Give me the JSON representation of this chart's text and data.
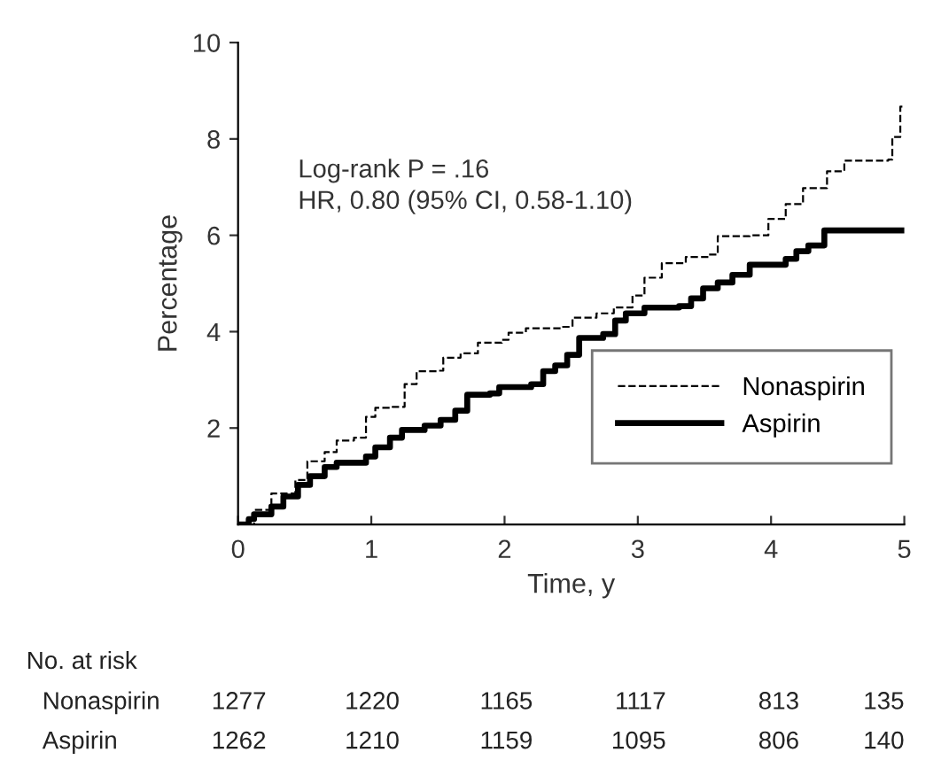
{
  "chart_data": {
    "type": "step",
    "xlabel": "Time, y",
    "ylabel": "Percentage",
    "xlim": [
      0,
      5
    ],
    "ylim": [
      0,
      10
    ],
    "xticks": [
      0,
      1,
      2,
      3,
      4,
      5
    ],
    "yticks": [
      2,
      4,
      6,
      8,
      10
    ],
    "grid": false,
    "legend": "bottom right",
    "marker": "none",
    "series": [
      {
        "name": "Nonaspirin",
        "color": "#000000",
        "line_style": "dashed",
        "x": [
          0,
          0.12,
          0.25,
          0.43,
          0.52,
          0.65,
          0.74,
          0.87,
          0.96,
          1.03,
          1.16,
          1.25,
          1.34,
          1.5,
          1.54,
          1.67,
          1.8,
          1.98,
          2.03,
          2.16,
          2.43,
          2.51,
          2.69,
          2.82,
          2.96,
          3.05,
          3.18,
          3.36,
          3.53,
          3.6,
          3.84,
          3.98,
          4.11,
          4.24,
          4.42,
          4.55,
          4.88,
          4.91,
          4.97,
          5.0
        ],
        "values": [
          0,
          0.3,
          0.64,
          0.92,
          1.31,
          1.5,
          1.74,
          1.8,
          2.23,
          2.42,
          2.44,
          2.91,
          3.18,
          3.19,
          3.46,
          3.55,
          3.77,
          3.83,
          3.98,
          4.07,
          4.1,
          4.29,
          4.38,
          4.5,
          4.75,
          5.12,
          5.42,
          5.55,
          5.6,
          5.98,
          6.0,
          6.34,
          6.65,
          6.98,
          7.33,
          7.55,
          7.57,
          8.04,
          8.67,
          8.67
        ]
      },
      {
        "name": "Aspirin",
        "color": "#000000",
        "line_style": "solid",
        "x": [
          0,
          0.08,
          0.12,
          0.25,
          0.34,
          0.45,
          0.54,
          0.65,
          0.74,
          0.96,
          1.03,
          1.14,
          1.23,
          1.4,
          1.52,
          1.63,
          1.72,
          1.89,
          1.96,
          2.2,
          2.29,
          2.38,
          2.47,
          2.56,
          2.74,
          2.83,
          2.91,
          3.05,
          3.31,
          3.4,
          3.49,
          3.6,
          3.71,
          3.84,
          4.11,
          4.19,
          4.28,
          4.4,
          5.0
        ],
        "values": [
          0,
          0.11,
          0.21,
          0.37,
          0.58,
          0.82,
          1.0,
          1.19,
          1.28,
          1.41,
          1.6,
          1.8,
          1.96,
          2.05,
          2.17,
          2.36,
          2.69,
          2.72,
          2.85,
          2.91,
          3.18,
          3.3,
          3.52,
          3.87,
          3.95,
          4.23,
          4.38,
          4.5,
          4.53,
          4.69,
          4.9,
          5.02,
          5.18,
          5.39,
          5.51,
          5.67,
          5.79,
          6.1,
          6.1
        ]
      }
    ],
    "annotations": [
      "Log-rank P = .16",
      "HR, 0.80 (95% CI, 0.58-1.10)",
      "No. at risk",
      "Nonaspirin",
      "1277",
      "1220",
      "1165",
      "1117",
      "813",
      "135",
      "Aspirin",
      "1262",
      "1210",
      "1159",
      "1095",
      "806",
      "140"
    ]
  }
}
